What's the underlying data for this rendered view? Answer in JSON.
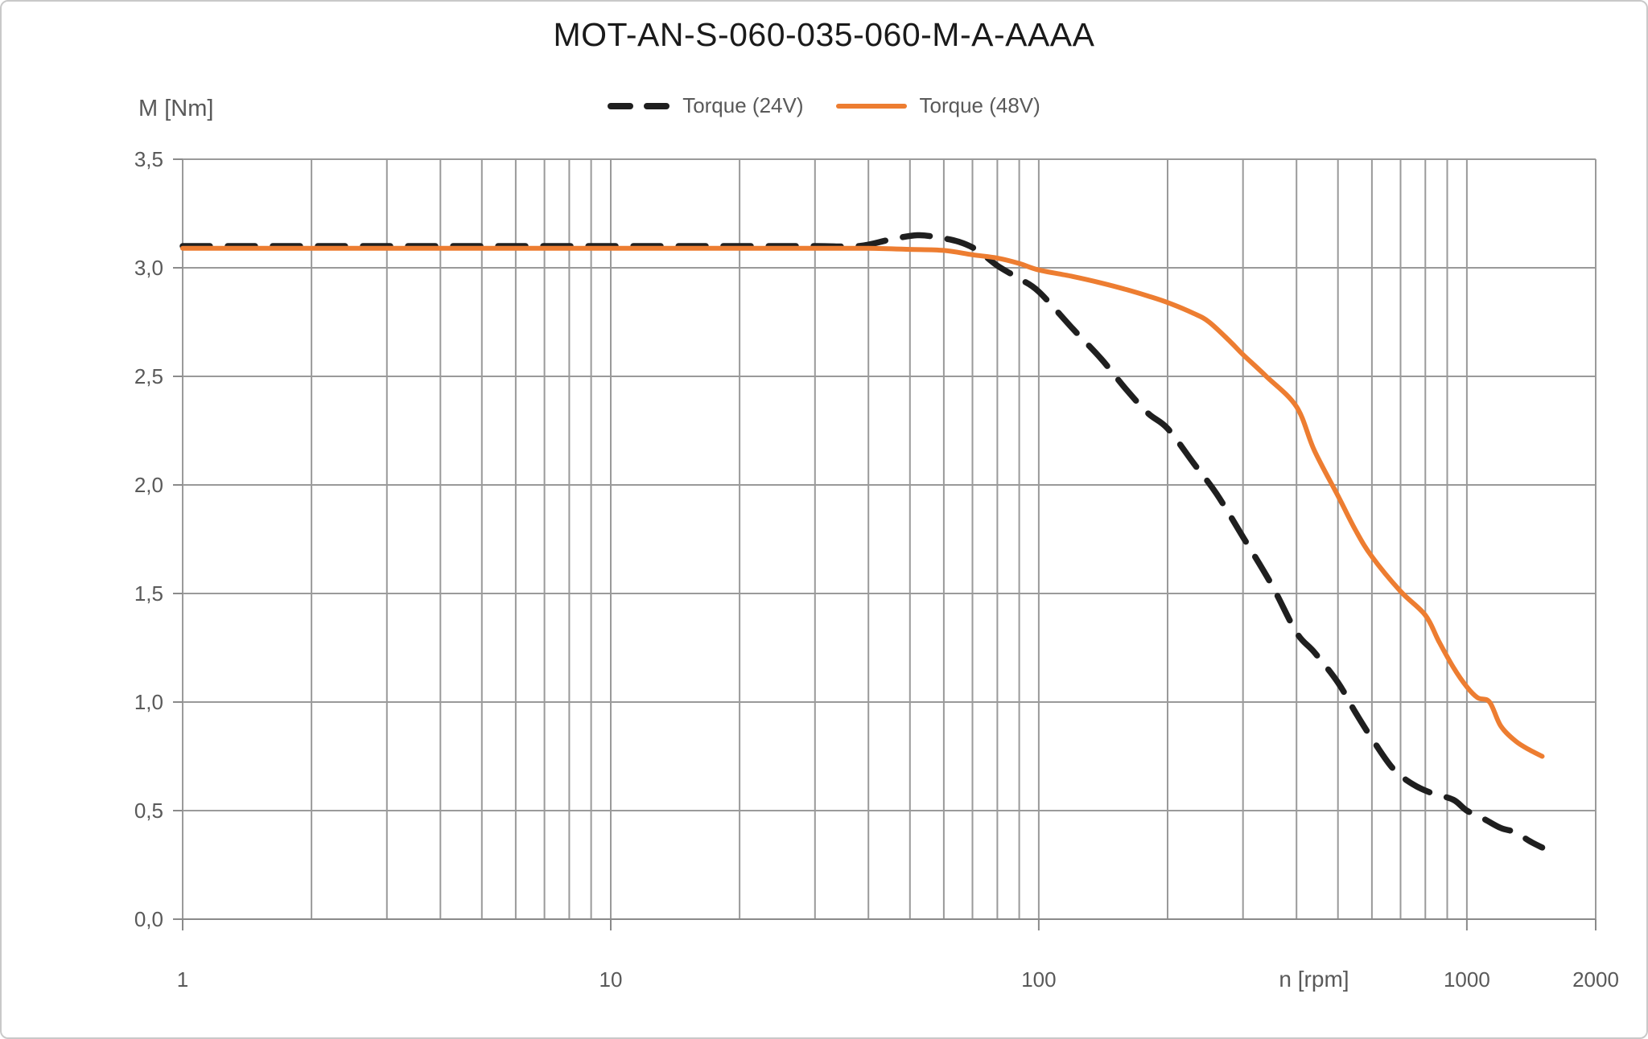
{
  "title": "MOT-AN-S-060-035-060-M-A-AAAA",
  "legend": {
    "items": [
      {
        "label": "Torque (24V)",
        "color": "#1f1f1f",
        "style": "dashed"
      },
      {
        "label": "Torque (48V)",
        "color": "#ED7D31",
        "style": "solid"
      }
    ]
  },
  "colors": {
    "torque_24v": "#1f1f1f",
    "torque_48v": "#ED7D31",
    "gridline": "#9a9a9a",
    "axis_line": "#8a8a8a",
    "axis_text": "#595959",
    "title_text": "#1a1a1a"
  },
  "chart_data": {
    "type": "line",
    "title": "MOT-AN-S-060-035-060-M-A-AAAA",
    "x_axis": {
      "label": "n [rpm]",
      "scale": "log",
      "min": 1,
      "max": 2000,
      "tick_values": [
        1,
        10,
        100,
        1000,
        2000
      ],
      "tick_labels": [
        "1",
        "10",
        "100",
        "1000",
        "2000"
      ],
      "grid": "minor logarithmic gridlines (1-10, 20-100, 200-1000, 2000)"
    },
    "y_axis": {
      "label": "M [Nm]",
      "min": 0,
      "max": 3.5,
      "step": 0.5,
      "tick_values": [
        3.5,
        3.0,
        2.5,
        2.0,
        1.5,
        1.0,
        0.5,
        0.0
      ],
      "tick_labels": [
        "3,5",
        "3,0",
        "2,5",
        "2,0",
        "1,5",
        "1,0",
        "0,5",
        "0,0"
      ]
    },
    "legend_position": "top-center",
    "series": [
      {
        "name": "Torque (24V)",
        "color": "#1f1f1f",
        "style": "dashed",
        "points": [
          [
            1,
            3.1
          ],
          [
            10,
            3.1
          ],
          [
            20,
            3.1
          ],
          [
            30,
            3.1
          ],
          [
            38,
            3.1
          ],
          [
            45,
            3.13
          ],
          [
            52,
            3.15
          ],
          [
            58,
            3.14
          ],
          [
            65,
            3.12
          ],
          [
            72,
            3.08
          ],
          [
            80,
            3.01
          ],
          [
            90,
            2.95
          ],
          [
            100,
            2.89
          ],
          [
            120,
            2.72
          ],
          [
            140,
            2.58
          ],
          [
            160,
            2.44
          ],
          [
            180,
            2.33
          ],
          [
            200,
            2.26
          ],
          [
            230,
            2.1
          ],
          [
            260,
            1.96
          ],
          [
            300,
            1.76
          ],
          [
            350,
            1.54
          ],
          [
            400,
            1.32
          ],
          [
            440,
            1.23
          ],
          [
            500,
            1.09
          ],
          [
            550,
            0.95
          ],
          [
            610,
            0.81
          ],
          [
            675,
            0.69
          ],
          [
            750,
            0.62
          ],
          [
            830,
            0.58
          ],
          [
            930,
            0.55
          ],
          [
            1000,
            0.5
          ],
          [
            1100,
            0.46
          ],
          [
            1200,
            0.42
          ],
          [
            1300,
            0.4
          ],
          [
            1400,
            0.36
          ],
          [
            1500,
            0.33
          ]
        ]
      },
      {
        "name": "Torque (48V)",
        "color": "#ED7D31",
        "style": "solid",
        "points": [
          [
            1,
            3.09
          ],
          [
            10,
            3.09
          ],
          [
            20,
            3.09
          ],
          [
            30,
            3.09
          ],
          [
            40,
            3.09
          ],
          [
            50,
            3.085
          ],
          [
            60,
            3.08
          ],
          [
            70,
            3.06
          ],
          [
            80,
            3.045
          ],
          [
            90,
            3.02
          ],
          [
            100,
            2.99
          ],
          [
            120,
            2.96
          ],
          [
            140,
            2.93
          ],
          [
            160,
            2.9
          ],
          [
            180,
            2.87
          ],
          [
            200,
            2.84
          ],
          [
            230,
            2.79
          ],
          [
            250,
            2.75
          ],
          [
            280,
            2.66
          ],
          [
            300,
            2.6
          ],
          [
            340,
            2.5
          ],
          [
            400,
            2.36
          ],
          [
            440,
            2.16
          ],
          [
            500,
            1.95
          ],
          [
            550,
            1.79
          ],
          [
            600,
            1.67
          ],
          [
            700,
            1.51
          ],
          [
            800,
            1.4
          ],
          [
            860,
            1.28
          ],
          [
            930,
            1.16
          ],
          [
            1000,
            1.07
          ],
          [
            1060,
            1.02
          ],
          [
            1130,
            1.0
          ],
          [
            1200,
            0.89
          ],
          [
            1300,
            0.82
          ],
          [
            1400,
            0.78
          ],
          [
            1500,
            0.75
          ]
        ]
      }
    ]
  }
}
